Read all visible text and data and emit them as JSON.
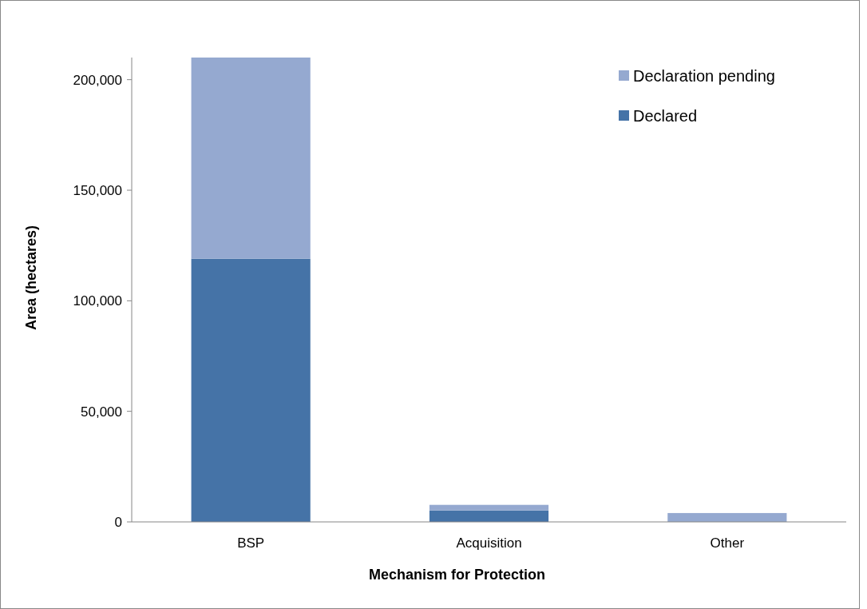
{
  "chart_data": {
    "type": "bar",
    "stacked": true,
    "xlabel": "Mechanism for Protection",
    "ylabel": "Area (hectares)",
    "categories": [
      "BSP",
      "Acquisition",
      "Other"
    ],
    "series": [
      {
        "name": "Declared",
        "color": "#4573a7",
        "values": [
          119000,
          5200,
          0
        ]
      },
      {
        "name": "Declaration pending",
        "color": "#95a9d0",
        "values": [
          91000,
          2500,
          4000
        ]
      }
    ],
    "ylim": [
      0,
      210000
    ],
    "yticks": [
      {
        "value": 0,
        "label": "0"
      },
      {
        "value": 50000,
        "label": "50,000"
      },
      {
        "value": 100000,
        "label": "100,000"
      },
      {
        "value": 150000,
        "label": "150,000"
      },
      {
        "value": 200000,
        "label": "200,000"
      }
    ],
    "grid": false,
    "legend": "top right"
  }
}
